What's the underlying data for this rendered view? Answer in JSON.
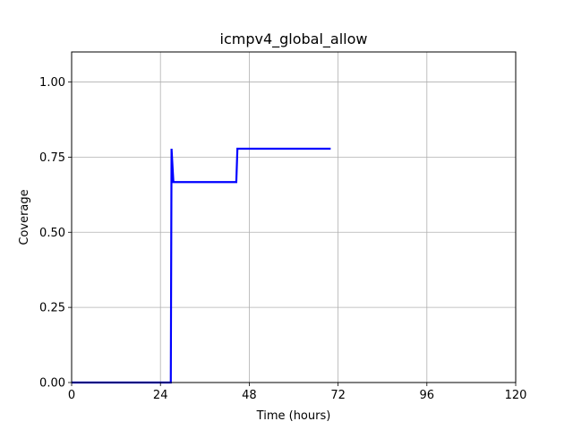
{
  "chart_data": {
    "type": "line",
    "title": "icmpv4_global_allow",
    "xlabel": "Time (hours)",
    "ylabel": "Coverage",
    "xlim": [
      0,
      120
    ],
    "ylim": [
      0,
      1.1
    ],
    "xticks": [
      0,
      24,
      48,
      72,
      96,
      120
    ],
    "xtick_labels": [
      "0",
      "24",
      "48",
      "72",
      "96",
      "120"
    ],
    "yticks": [
      0.0,
      0.25,
      0.5,
      0.75,
      1.0
    ],
    "ytick_labels": [
      "0.00",
      "0.25",
      "0.50",
      "0.75",
      "1.00"
    ],
    "grid": true,
    "series": [
      {
        "color": "#0000ff",
        "x": [
          0,
          26.8,
          27.0,
          27.5,
          44.5,
          44.8,
          70
        ],
        "y": [
          0.0,
          0.0,
          0.778,
          0.667,
          0.667,
          0.778,
          0.778
        ]
      }
    ]
  }
}
